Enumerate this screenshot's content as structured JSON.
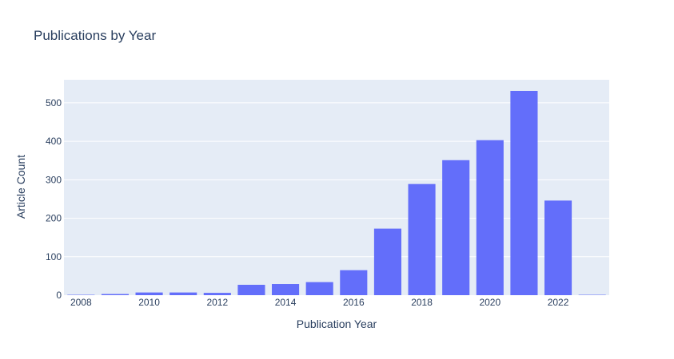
{
  "chart_data": {
    "type": "bar",
    "title": "Publications by Year",
    "xlabel": "Publication Year",
    "ylabel": "Article Count",
    "x": [
      2008,
      2009,
      2010,
      2011,
      2012,
      2013,
      2014,
      2015,
      2016,
      2017,
      2018,
      2019,
      2020,
      2021,
      2022,
      2023
    ],
    "values": [
      1,
      3,
      7,
      7,
      6,
      27,
      29,
      34,
      65,
      173,
      289,
      351,
      403,
      531,
      246,
      1
    ],
    "x_ticks": [
      "2008",
      "2010",
      "2012",
      "2014",
      "2016",
      "2018",
      "2020",
      "2022"
    ],
    "y_ticks": [
      0,
      100,
      200,
      300,
      400,
      500
    ],
    "xlim": [
      2007.5,
      2023.5
    ],
    "ylim": [
      0,
      560
    ],
    "grid": true,
    "colors": {
      "bar": "#636efa",
      "plot_bg": "#e5ecf6",
      "grid": "#ffffff",
      "text": "#2a3f5f"
    }
  }
}
